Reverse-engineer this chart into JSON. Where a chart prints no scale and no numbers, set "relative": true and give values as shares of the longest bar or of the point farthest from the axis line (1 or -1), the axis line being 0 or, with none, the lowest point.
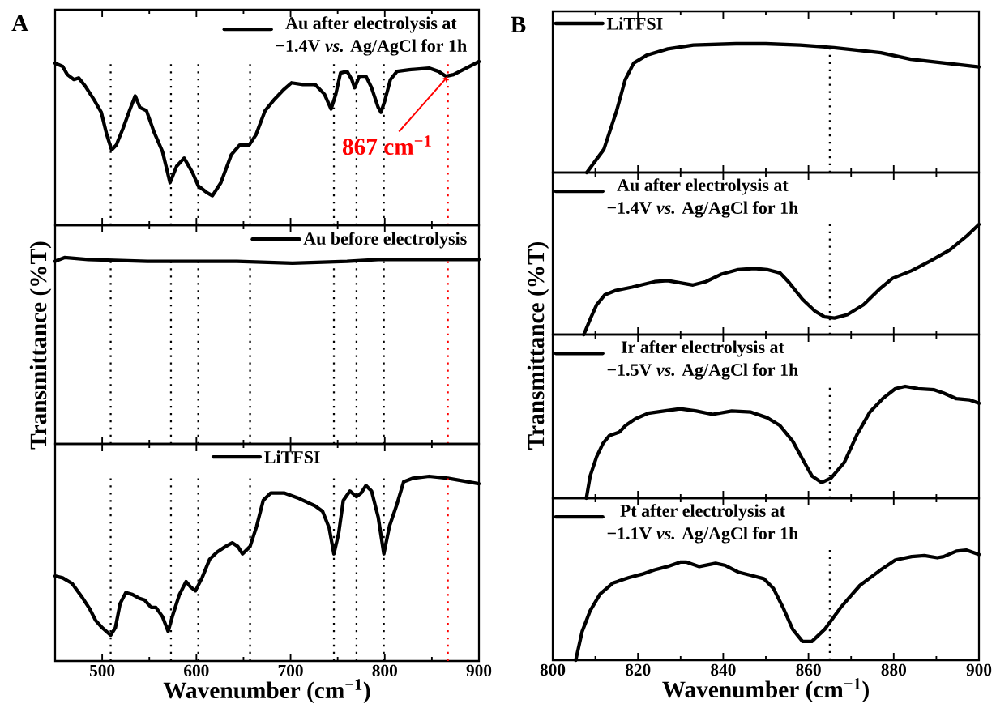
{
  "chart_data": [
    {
      "type": "line",
      "title": "A",
      "relative": true,
      "xlim": [
        450,
        900
      ],
      "xticks": [
        500,
        600,
        700,
        800,
        900
      ],
      "tick_labels": false,
      "legend": "top right",
      "series": [
        {
          "name": "Au after electrolysis at −1.4V *vs.* Ag/AgCl for 1h",
          "color": "#000000",
          "x": [
            450,
            458,
            463,
            470,
            475,
            482,
            492,
            499,
            505,
            510,
            515,
            522,
            529,
            535,
            540,
            547,
            555,
            564,
            572,
            579,
            587,
            596,
            602,
            611,
            617,
            626,
            637,
            646,
            656,
            663,
            673,
            683,
            693,
            701,
            713,
            726,
            736,
            743,
            748,
            753,
            760,
            765,
            768,
            773,
            780,
            786,
            793,
            796,
            800,
            806,
            813,
            826,
            847,
            857,
            865,
            873,
            883,
            900
          ],
          "values": [
            0.99,
            0.97,
            0.92,
            0.89,
            0.9,
            0.85,
            0.76,
            0.69,
            0.55,
            0.46,
            0.49,
            0.59,
            0.7,
            0.79,
            0.72,
            0.7,
            0.57,
            0.45,
            0.26,
            0.36,
            0.41,
            0.32,
            0.24,
            0.2,
            0.18,
            0.26,
            0.43,
            0.49,
            0.49,
            0.55,
            0.7,
            0.77,
            0.83,
            0.87,
            0.86,
            0.86,
            0.8,
            0.71,
            0.8,
            0.93,
            0.94,
            0.89,
            0.84,
            0.91,
            0.91,
            0.84,
            0.72,
            0.69,
            0.76,
            0.89,
            0.94,
            0.95,
            0.96,
            0.94,
            0.91,
            0.92,
            0.95,
            1.0
          ]
        }
      ],
      "ref_lines": [
        {
          "axis": "x",
          "value": 509,
          "color": "#000000",
          "line_style": "dotted"
        },
        {
          "axis": "x",
          "value": 573,
          "color": "#000000",
          "line_style": "dotted"
        },
        {
          "axis": "x",
          "value": 602,
          "color": "#000000",
          "line_style": "dotted"
        },
        {
          "axis": "x",
          "value": 657,
          "color": "#000000",
          "line_style": "dotted"
        },
        {
          "axis": "x",
          "value": 746,
          "color": "#000000",
          "line_style": "dotted"
        },
        {
          "axis": "x",
          "value": 770,
          "color": "#000000",
          "line_style": "dotted"
        },
        {
          "axis": "x",
          "value": 799,
          "color": "#000000",
          "line_style": "dotted"
        },
        {
          "axis": "x",
          "value": 867,
          "color": "#ff0000",
          "line_style": "dotted"
        }
      ],
      "annotations": [
        {
          "text": "867 cm$^{−1}$",
          "x": 867,
          "y": 0.91
        }
      ]
    },
    {
      "type": "line",
      "relative": true,
      "xlim": [
        450,
        900
      ],
      "xticks": [
        500,
        600,
        700,
        800,
        900
      ],
      "tick_labels": false,
      "legend": "top right",
      "ylabel": "Transmittance (%T)",
      "series": [
        {
          "name": "Au before electrolysis",
          "color": "#000000",
          "x": [
            450,
            460,
            485,
            548,
            583,
            643,
            702,
            760,
            793,
            900
          ],
          "values": [
            0.98,
            1.0,
            0.99,
            0.98,
            0.98,
            0.98,
            0.97,
            0.98,
            0.99,
            0.99
          ]
        }
      ],
      "ref_lines": [
        {
          "axis": "x",
          "value": 509,
          "color": "#000000",
          "line_style": "dotted"
        },
        {
          "axis": "x",
          "value": 573,
          "color": "#000000",
          "line_style": "dotted"
        },
        {
          "axis": "x",
          "value": 602,
          "color": "#000000",
          "line_style": "dotted"
        },
        {
          "axis": "x",
          "value": 657,
          "color": "#000000",
          "line_style": "dotted"
        },
        {
          "axis": "x",
          "value": 746,
          "color": "#000000",
          "line_style": "dotted"
        },
        {
          "axis": "x",
          "value": 770,
          "color": "#000000",
          "line_style": "dotted"
        },
        {
          "axis": "x",
          "value": 799,
          "color": "#000000",
          "line_style": "dotted"
        },
        {
          "axis": "x",
          "value": 867,
          "color": "#ff0000",
          "line_style": "dotted"
        }
      ]
    },
    {
      "type": "line",
      "relative": true,
      "xlim": [
        450,
        900
      ],
      "xticks": [
        500,
        600,
        700,
        800,
        900
      ],
      "legend": "top",
      "xlabel": "Wavenumber (cm$^{−1}$)",
      "series": [
        {
          "name": "LiTFSI",
          "color": "#000000",
          "x": [
            450,
            458,
            468,
            478,
            487,
            493,
            500,
            509,
            514,
            519,
            525,
            532,
            539,
            545,
            552,
            557,
            564,
            570,
            575,
            582,
            589,
            594,
            599,
            606,
            614,
            622,
            631,
            638,
            644,
            649,
            657,
            664,
            671,
            679,
            693,
            709,
            726,
            734,
            741,
            746,
            751,
            756,
            763,
            770,
            775,
            780,
            786,
            793,
            799,
            805,
            813,
            820,
            830,
            847,
            867,
            900
          ],
          "values": [
            0.46,
            0.45,
            0.42,
            0.35,
            0.28,
            0.22,
            0.18,
            0.14,
            0.18,
            0.31,
            0.37,
            0.36,
            0.34,
            0.33,
            0.29,
            0.29,
            0.24,
            0.16,
            0.25,
            0.36,
            0.43,
            0.4,
            0.38,
            0.45,
            0.55,
            0.59,
            0.62,
            0.64,
            0.62,
            0.58,
            0.62,
            0.73,
            0.87,
            0.91,
            0.91,
            0.88,
            0.84,
            0.81,
            0.72,
            0.58,
            0.69,
            0.87,
            0.92,
            0.89,
            0.91,
            0.95,
            0.92,
            0.78,
            0.58,
            0.73,
            0.85,
            0.97,
            0.99,
            1.0,
            0.99,
            0.96
          ]
        }
      ],
      "ref_lines": [
        {
          "axis": "x",
          "value": 509,
          "color": "#000000",
          "line_style": "dotted"
        },
        {
          "axis": "x",
          "value": 573,
          "color": "#000000",
          "line_style": "dotted"
        },
        {
          "axis": "x",
          "value": 602,
          "color": "#000000",
          "line_style": "dotted"
        },
        {
          "axis": "x",
          "value": 657,
          "color": "#000000",
          "line_style": "dotted"
        },
        {
          "axis": "x",
          "value": 746,
          "color": "#000000",
          "line_style": "dotted"
        },
        {
          "axis": "x",
          "value": 770,
          "color": "#000000",
          "line_style": "dotted"
        },
        {
          "axis": "x",
          "value": 799,
          "color": "#000000",
          "line_style": "dotted"
        },
        {
          "axis": "x",
          "value": 867,
          "color": "#ff0000",
          "line_style": "dotted"
        }
      ]
    },
    {
      "type": "line",
      "title": "B",
      "relative": true,
      "xlim": [
        800,
        900
      ],
      "xticks": [
        800,
        820,
        840,
        860,
        880,
        900
      ],
      "tick_labels": false,
      "legend": "top left",
      "series": [
        {
          "name": "LiTFSI",
          "color": "#000000",
          "x": [
            808,
            812,
            815,
            817,
            819,
            822,
            827,
            833,
            843,
            850,
            858,
            866,
            877,
            884,
            892,
            900
          ],
          "values": [
            0,
            0.18,
            0.48,
            0.72,
            0.85,
            0.91,
            0.96,
            0.99,
            1.0,
            1.0,
            0.99,
            0.97,
            0.93,
            0.88,
            0.85,
            0.82
          ]
        }
      ],
      "ref_lines": [
        {
          "axis": "x",
          "value": 865,
          "color": "#000000",
          "line_style": "dotted"
        }
      ]
    },
    {
      "type": "line",
      "relative": true,
      "xlim": [
        800,
        900
      ],
      "xticks": [
        800,
        820,
        840,
        860,
        880,
        900
      ],
      "tick_labels": false,
      "legend": "top left",
      "ylabel": "Transmittance (%T)",
      "series": [
        {
          "name": "Au after electrolysis at −1.4V *vs.* Ag/AgCl for 1h",
          "color": "#000000",
          "x": [
            807.3,
            808.8,
            810.3,
            812.2,
            814.8,
            818.6,
            823.9,
            826.9,
            829.9,
            832.9,
            835.9,
            839.7,
            843.5,
            847.3,
            850.3,
            853.3,
            855.5,
            858.6,
            861.6,
            863.8,
            866.1,
            869.1,
            872.9,
            876.6,
            879.7,
            884.2,
            888.7,
            893.2,
            897.0,
            900
          ],
          "values": [
            0,
            0.14,
            0.27,
            0.36,
            0.4,
            0.43,
            0.48,
            0.49,
            0.47,
            0.45,
            0.48,
            0.55,
            0.59,
            0.6,
            0.59,
            0.56,
            0.47,
            0.32,
            0.21,
            0.16,
            0.15,
            0.18,
            0.27,
            0.41,
            0.51,
            0.58,
            0.67,
            0.77,
            0.89,
            1.0
          ]
        }
      ],
      "ref_lines": [
        {
          "axis": "x",
          "value": 865,
          "color": "#000000",
          "line_style": "dotted"
        }
      ]
    },
    {
      "type": "line",
      "relative": true,
      "xlim": [
        800,
        900
      ],
      "xticks": [
        800,
        820,
        840,
        860,
        880,
        900
      ],
      "tick_labels": false,
      "legend": "top left",
      "series": [
        {
          "name": "Ir after electrolysis at −1.5V *vs.* Ag/AgCl for 1h",
          "color": "#000000",
          "x": [
            807.9,
            808.8,
            810.3,
            811.8,
            813.3,
            815.6,
            817.1,
            819.4,
            822.4,
            826.1,
            829.9,
            833.7,
            837.5,
            842.0,
            846.5,
            850.3,
            853.3,
            856.3,
            858.6,
            860.8,
            863.1,
            865.3,
            868.4,
            871.4,
            874.4,
            877.4,
            880.4,
            882.7,
            885.7,
            889.5,
            891.7,
            894.7,
            897.7,
            900
          ],
          "values": [
            0,
            0.2,
            0.37,
            0.49,
            0.56,
            0.59,
            0.65,
            0.71,
            0.76,
            0.78,
            0.8,
            0.78,
            0.75,
            0.78,
            0.77,
            0.72,
            0.65,
            0.51,
            0.35,
            0.2,
            0.14,
            0.18,
            0.32,
            0.57,
            0.77,
            0.89,
            0.98,
            1.0,
            0.98,
            0.97,
            0.94,
            0.89,
            0.88,
            0.85
          ]
        }
      ],
      "ref_lines": [
        {
          "axis": "x",
          "value": 865,
          "color": "#000000",
          "line_style": "dotted"
        }
      ]
    },
    {
      "type": "line",
      "relative": true,
      "xlim": [
        800,
        900
      ],
      "xticks": [
        800,
        820,
        840,
        860,
        880,
        900
      ],
      "legend": "top left",
      "xlabel": "Wavenumber (cm$^{−1}$)",
      "series": [
        {
          "name": "Pt after electrolysis at −1.1V *vs.* Ag/AgCl for 1h",
          "color": "#000000",
          "x": [
            805.4,
            806.9,
            808.8,
            811.1,
            814.1,
            817.9,
            820.9,
            823.9,
            826.9,
            829.9,
            831.4,
            834.4,
            838.2,
            840.5,
            843.5,
            846.5,
            849.5,
            851.8,
            854.0,
            856.3,
            858.6,
            860.8,
            863.8,
            867.6,
            872.1,
            876.6,
            880.4,
            884.2,
            887.2,
            890.2,
            891.7,
            894.7,
            897.0,
            900
          ],
          "values": [
            0,
            0.26,
            0.45,
            0.6,
            0.7,
            0.75,
            0.78,
            0.82,
            0.85,
            0.89,
            0.89,
            0.85,
            0.88,
            0.86,
            0.8,
            0.77,
            0.74,
            0.65,
            0.48,
            0.28,
            0.17,
            0.17,
            0.28,
            0.48,
            0.68,
            0.81,
            0.91,
            0.94,
            0.95,
            0.93,
            0.94,
            0.99,
            1.0,
            0.96
          ]
        }
      ],
      "ref_lines": [
        {
          "axis": "x",
          "value": 865,
          "color": "#000000",
          "line_style": "dotted"
        }
      ]
    }
  ]
}
